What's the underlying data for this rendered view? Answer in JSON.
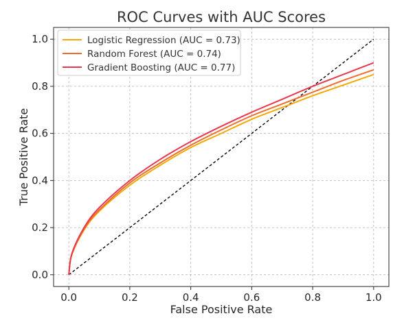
{
  "chart_data": {
    "type": "line",
    "title": "ROC Curves with AUC Scores",
    "xlabel": "False Positive Rate",
    "ylabel": "True Positive Rate",
    "xlim": [
      -0.05,
      1.05
    ],
    "ylim": [
      -0.05,
      1.05
    ],
    "xticks": [
      0.0,
      0.2,
      0.4,
      0.6,
      0.8,
      1.0
    ],
    "yticks": [
      0.0,
      0.2,
      0.4,
      0.6,
      0.8,
      1.0
    ],
    "tick_labels": [
      "0.0",
      "0.2",
      "0.4",
      "0.6",
      "0.8",
      "1.0"
    ],
    "grid": true,
    "legend_position": "top-left",
    "x": [
      0.0,
      0.01,
      0.05,
      0.1,
      0.2,
      0.3,
      0.4,
      0.5,
      0.6,
      0.7,
      0.8,
      0.9,
      1.0
    ],
    "series": [
      {
        "name": "Logistic Regression (AUC = 0.73)",
        "color": "#F5A800",
        "values": [
          0.0,
          0.085,
          0.19,
          0.27,
          0.38,
          0.465,
          0.54,
          0.6,
          0.66,
          0.71,
          0.76,
          0.805,
          0.85
        ]
      },
      {
        "name": "Random Forest (AUC = 0.74)",
        "color": "#EE6C2C",
        "values": [
          0.0,
          0.087,
          0.195,
          0.275,
          0.39,
          0.475,
          0.55,
          0.615,
          0.675,
          0.725,
          0.775,
          0.825,
          0.87
        ]
      },
      {
        "name": "Gradient Boosting (AUC = 0.77)",
        "color": "#E8384F",
        "values": [
          0.0,
          0.09,
          0.2,
          0.285,
          0.4,
          0.49,
          0.565,
          0.63,
          0.69,
          0.745,
          0.8,
          0.85,
          0.9
        ]
      }
    ],
    "reference_line": {
      "style": "dashed",
      "color": "#000000",
      "x": [
        0,
        1
      ],
      "y": [
        0,
        1
      ]
    }
  }
}
